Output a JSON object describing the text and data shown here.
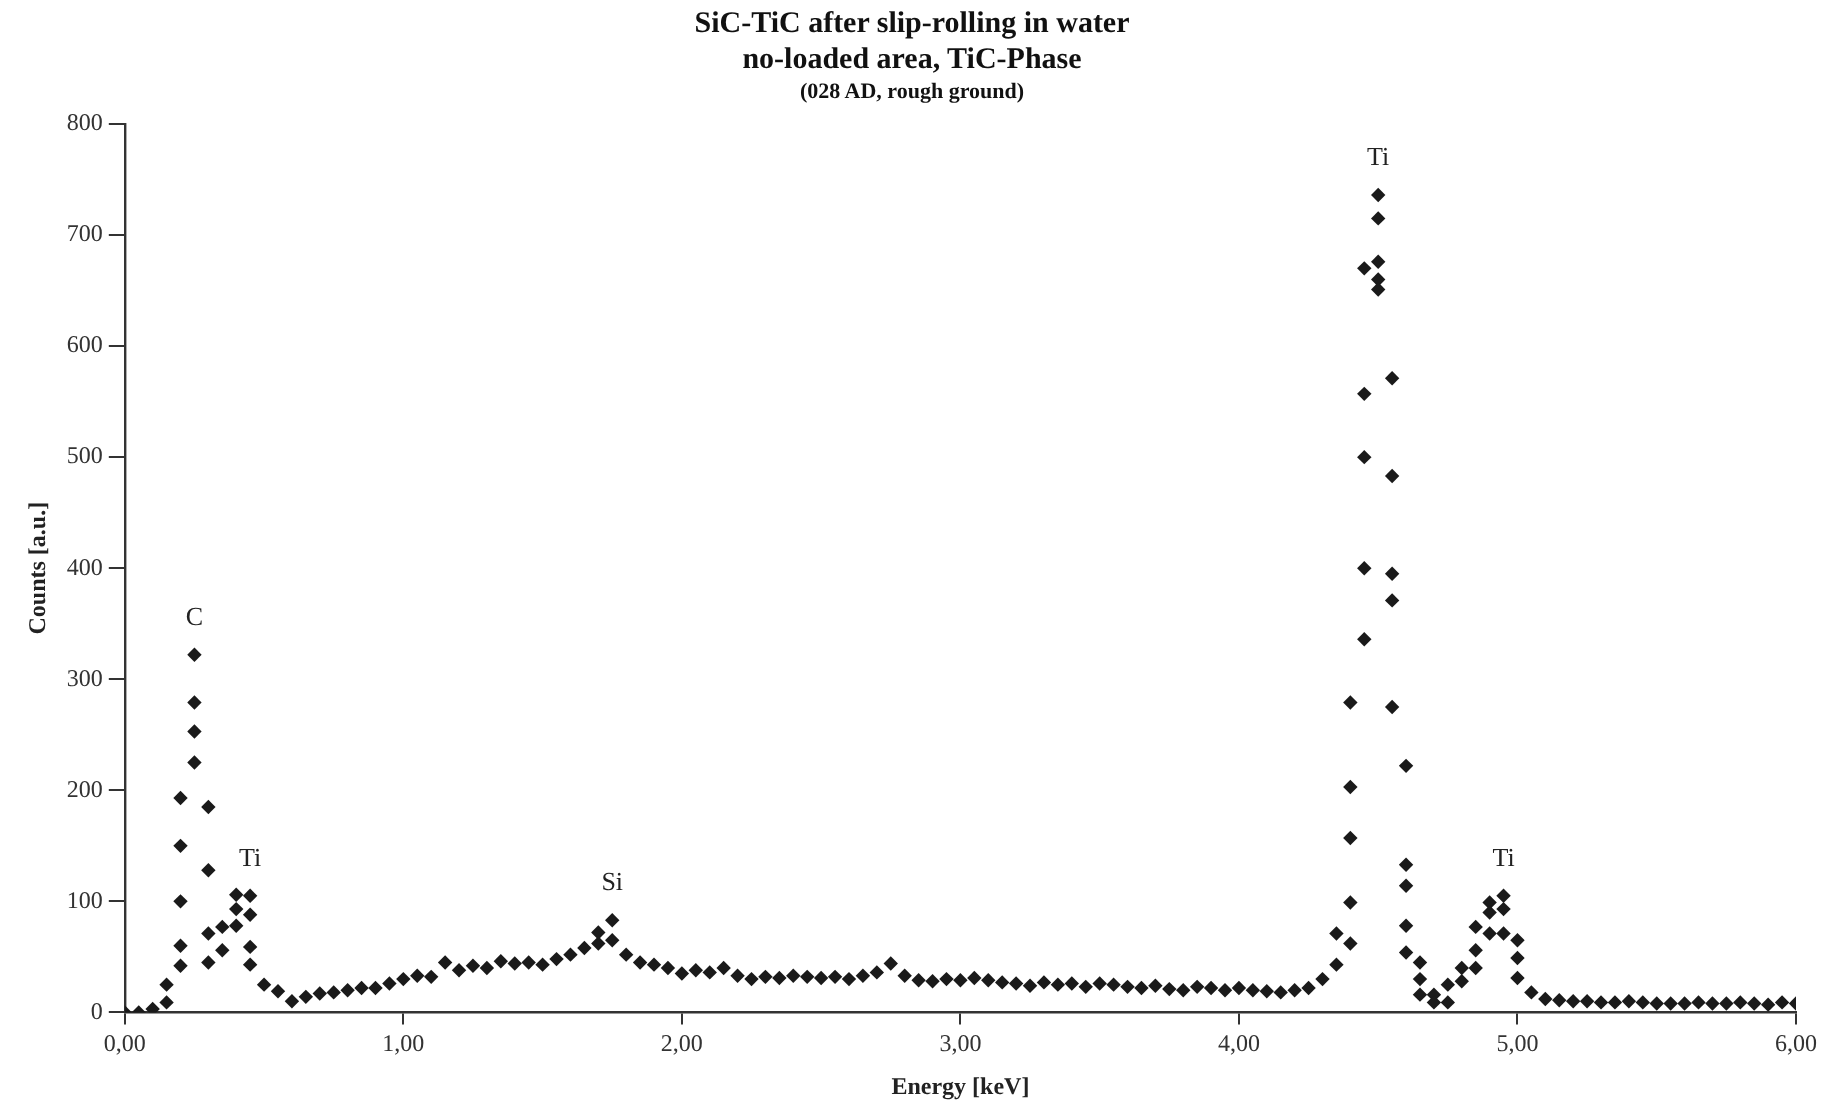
{
  "chart_data": {
    "type": "scatter",
    "title": "SiC-TiC after slip-rolling in water",
    "subtitle": "no-loaded area, TiC-Phase",
    "xlabel": "Energy [keV]",
    "ylabel": "Counts [a.u.]",
    "annotations": [
      "(028 AD, rough ground)",
      {
        "text": "C",
        "x": 0.25,
        "y": 322
      },
      {
        "text": "Ti",
        "x": 0.45,
        "y": 105
      },
      {
        "text": "Si",
        "x": 1.75,
        "y": 83
      },
      {
        "text": "Ti",
        "x": 4.5,
        "y": 736
      },
      {
        "text": "Ti",
        "x": 4.95,
        "y": 105
      }
    ],
    "marker": "diamond",
    "grid": false,
    "legend": false,
    "xlim": [
      0,
      6
    ],
    "xticks": [
      {
        "value": 0,
        "label": "0,00"
      },
      {
        "value": 1,
        "label": "1,00"
      },
      {
        "value": 2,
        "label": "2,00"
      },
      {
        "value": 3,
        "label": "3,00"
      },
      {
        "value": 4,
        "label": "4,00"
      },
      {
        "value": 5,
        "label": "5,00"
      },
      {
        "value": 6,
        "label": "6,00"
      }
    ],
    "ylim": [
      0,
      800
    ],
    "yticks": [
      0,
      100,
      200,
      300,
      400,
      500,
      600,
      700,
      800
    ],
    "series": [
      {
        "color": "#1a1a1a",
        "x": [
          0,
          0.05,
          0.1,
          0.15,
          0.15,
          0.2,
          0.2,
          0.2,
          0.2,
          0.2,
          0.25,
          0.25,
          0.25,
          0.25,
          0.3,
          0.3,
          0.3,
          0.3,
          0.35,
          0.35,
          0.4,
          0.4,
          0.4,
          0.45,
          0.45,
          0.45,
          0.45,
          0.5,
          0.55,
          0.6,
          0.65,
          0.7,
          0.75,
          0.8,
          0.85,
          0.9,
          0.95,
          1.0,
          1.05,
          1.1,
          1.15,
          1.2,
          1.25,
          1.3,
          1.35,
          1.4,
          1.45,
          1.5,
          1.55,
          1.6,
          1.65,
          1.7,
          1.7,
          1.75,
          1.75,
          1.8,
          1.85,
          1.9,
          1.95,
          2.0,
          2.05,
          2.1,
          2.15,
          2.2,
          2.25,
          2.3,
          2.35,
          2.4,
          2.45,
          2.5,
          2.55,
          2.6,
          2.65,
          2.7,
          2.75,
          2.8,
          2.85,
          2.9,
          2.95,
          3.0,
          3.05,
          3.1,
          3.15,
          3.2,
          3.25,
          3.3,
          3.35,
          3.4,
          3.45,
          3.5,
          3.55,
          3.6,
          3.65,
          3.7,
          3.75,
          3.8,
          3.85,
          3.9,
          3.95,
          4.0,
          4.05,
          4.1,
          4.15,
          4.2,
          4.25,
          4.3,
          4.35,
          4.35,
          4.4,
          4.4,
          4.4,
          4.4,
          4.4,
          4.45,
          4.45,
          4.45,
          4.45,
          4.45,
          4.5,
          4.5,
          4.5,
          4.5,
          4.5,
          4.55,
          4.55,
          4.55,
          4.55,
          4.55,
          4.6,
          4.6,
          4.6,
          4.6,
          4.6,
          4.65,
          4.65,
          4.65,
          4.7,
          4.7,
          4.75,
          4.75,
          4.8,
          4.8,
          4.85,
          4.85,
          4.85,
          4.9,
          4.9,
          4.9,
          4.95,
          4.95,
          4.95,
          5.0,
          5.0,
          5.0,
          5.05,
          5.1,
          5.15,
          5.2,
          5.25,
          5.3,
          5.35,
          5.4,
          5.45,
          5.5,
          5.55,
          5.6,
          5.65,
          5.7,
          5.75,
          5.8,
          5.85,
          5.9,
          5.95,
          6.0
        ],
        "values": [
          0,
          0,
          3,
          9,
          25,
          42,
          60,
          100,
          150,
          193,
          322,
          279,
          253,
          225,
          185,
          128,
          71,
          45,
          77,
          56,
          106,
          93,
          78,
          105,
          88,
          59,
          43,
          25,
          19,
          10,
          14,
          17,
          18,
          20,
          22,
          22,
          26,
          30,
          33,
          32,
          45,
          38,
          42,
          40,
          46,
          44,
          45,
          43,
          48,
          52,
          58,
          62,
          72,
          83,
          65,
          52,
          45,
          43,
          40,
          35,
          38,
          36,
          40,
          33,
          30,
          32,
          31,
          33,
          32,
          31,
          32,
          30,
          33,
          36,
          44,
          33,
          29,
          28,
          30,
          29,
          31,
          29,
          27,
          26,
          24,
          27,
          25,
          26,
          23,
          26,
          25,
          23,
          22,
          24,
          21,
          20,
          23,
          22,
          20,
          22,
          20,
          19,
          18,
          20,
          22,
          30,
          43,
          71,
          62,
          99,
          157,
          203,
          279,
          336,
          400,
          500,
          557,
          670,
          736,
          715,
          676,
          660,
          651,
          571,
          483,
          395,
          371,
          275,
          222,
          133,
          114,
          78,
          54,
          45,
          30,
          16,
          16,
          9,
          25,
          9,
          28,
          40,
          77,
          56,
          40,
          99,
          90,
          71,
          105,
          93,
          71,
          65,
          49,
          31,
          18,
          12,
          11,
          10,
          10,
          9,
          9,
          10,
          9,
          8,
          8,
          8,
          9,
          8,
          8,
          9,
          8,
          7,
          9,
          8
        ]
      }
    ]
  }
}
